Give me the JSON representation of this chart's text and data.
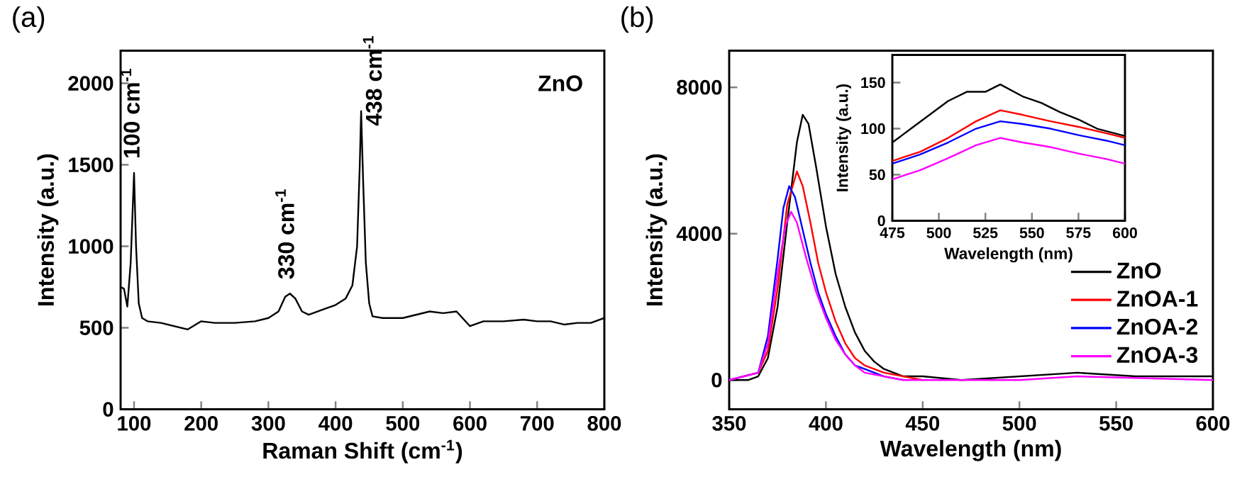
{
  "chart_data": [
    {
      "type": "line",
      "title": "(a)",
      "xlabel": "Raman Shift (cm$^{-1}$)",
      "ylabel": "Intensity (a.u.)",
      "xlim": [
        80,
        800
      ],
      "ylim": [
        0,
        2200
      ],
      "xticks": [
        100,
        200,
        300,
        400,
        500,
        600,
        700,
        800
      ],
      "yticks": [
        0,
        500,
        1000,
        1500,
        2000
      ],
      "marker": "none",
      "legend": false,
      "annotations": [
        {
          "text": "100 cm$^{-1}$",
          "x": 100,
          "y": 1450
        },
        {
          "text": "330 cm$^{-1}$",
          "x": 330,
          "y": 710
        },
        {
          "text": "438 cm$^{-1}$",
          "x": 438,
          "y": 1830
        },
        "ZnO"
      ],
      "series": [
        {
          "color": "#000000",
          "x": [
            80,
            85,
            90,
            95,
            100,
            103,
            107,
            112,
            120,
            140,
            160,
            180,
            200,
            220,
            250,
            280,
            300,
            315,
            325,
            332,
            340,
            350,
            360,
            380,
            400,
            415,
            425,
            432,
            436,
            438,
            441,
            445,
            450,
            455,
            470,
            500,
            520,
            540,
            560,
            580,
            600,
            620,
            650,
            680,
            700,
            720,
            740,
            760,
            780,
            800
          ],
          "values": [
            750,
            740,
            630,
            900,
            1450,
            1000,
            650,
            560,
            540,
            530,
            510,
            490,
            540,
            530,
            530,
            540,
            560,
            600,
            690,
            710,
            680,
            600,
            580,
            610,
            640,
            680,
            760,
            1000,
            1500,
            1830,
            1400,
            900,
            650,
            570,
            560,
            560,
            580,
            600,
            590,
            600,
            510,
            540,
            540,
            550,
            540,
            540,
            520,
            530,
            530,
            560
          ]
        }
      ]
    },
    {
      "type": "line",
      "title": "(b)",
      "xlabel": "Wavelength (nm)",
      "ylabel": "Intensity (a.u.)",
      "xlim": [
        350,
        600
      ],
      "ylim": [
        -800,
        9000
      ],
      "xticks": [
        350,
        400,
        450,
        500,
        550,
        600
      ],
      "yticks": [
        0,
        4000,
        8000
      ],
      "marker": "none",
      "legend": "right",
      "series": [
        {
          "name": "ZnO",
          "color": "#000000",
          "x": [
            350,
            360,
            365,
            370,
            375,
            380,
            385,
            388,
            391,
            395,
            400,
            405,
            410,
            415,
            420,
            425,
            430,
            440,
            450,
            470,
            500,
            530,
            560,
            600
          ],
          "values": [
            0,
            0,
            100,
            600,
            2000,
            4300,
            6500,
            7250,
            7000,
            5800,
            4200,
            2900,
            2000,
            1300,
            800,
            500,
            300,
            100,
            100,
            0,
            100,
            200,
            100,
            100
          ]
        },
        {
          "name": "ZnOA-1",
          "color": "#ff0000",
          "x": [
            350,
            365,
            370,
            375,
            380,
            385,
            388,
            392,
            396,
            400,
            405,
            410,
            415,
            420,
            430,
            440,
            450
          ],
          "values": [
            0,
            200,
            800,
            2500,
            4800,
            5700,
            5300,
            4300,
            3200,
            2400,
            1600,
            1000,
            600,
            400,
            200,
            100,
            0
          ]
        },
        {
          "name": "ZnOA-2",
          "color": "#0000ff",
          "x": [
            350,
            365,
            370,
            375,
            378,
            381,
            384,
            388,
            392,
            396,
            400,
            405,
            410,
            415,
            420,
            430,
            440
          ],
          "values": [
            0,
            200,
            1200,
            3300,
            4700,
            5300,
            5000,
            4100,
            3200,
            2400,
            1800,
            1200,
            700,
            400,
            300,
            100,
            0
          ]
        },
        {
          "name": "ZnOA-3",
          "color": "#ff00ff",
          "x": [
            350,
            365,
            370,
            375,
            379,
            382,
            385,
            390,
            395,
            400,
            405,
            410,
            415,
            420,
            430,
            440,
            500,
            530,
            600
          ],
          "values": [
            0,
            200,
            1000,
            2900,
            4200,
            4600,
            4300,
            3300,
            2400,
            1700,
            1100,
            700,
            400,
            200,
            100,
            0,
            0,
            100,
            0
          ]
        }
      ]
    },
    {
      "type": "line",
      "xlabel": "Wavelength (nm)",
      "ylabel": "Intensity (a.u.)",
      "xlim": [
        475,
        600
      ],
      "ylim": [
        0,
        180
      ],
      "xticks": [
        475,
        500,
        525,
        550,
        575,
        600
      ],
      "yticks": [
        0,
        50,
        100,
        150
      ],
      "marker": "none",
      "legend": false,
      "series": [
        {
          "color": "#000000",
          "x": [
            475,
            485,
            495,
            505,
            515,
            525,
            533,
            545,
            555,
            565,
            575,
            585,
            600
          ],
          "values": [
            85,
            100,
            115,
            130,
            140,
            140,
            148,
            135,
            128,
            118,
            110,
            100,
            92
          ]
        },
        {
          "color": "#ff0000",
          "x": [
            475,
            490,
            505,
            520,
            533,
            545,
            560,
            575,
            590,
            600
          ],
          "values": [
            65,
            75,
            90,
            108,
            120,
            115,
            108,
            102,
            95,
            90
          ]
        },
        {
          "color": "#0000ff",
          "x": [
            475,
            490,
            505,
            520,
            533,
            545,
            560,
            575,
            590,
            600
          ],
          "values": [
            62,
            72,
            85,
            100,
            108,
            105,
            100,
            93,
            87,
            82
          ]
        },
        {
          "color": "#ff00ff",
          "x": [
            475,
            490,
            505,
            520,
            533,
            545,
            560,
            575,
            590,
            600
          ],
          "values": [
            45,
            55,
            68,
            82,
            90,
            85,
            80,
            73,
            67,
            62
          ]
        }
      ]
    }
  ]
}
